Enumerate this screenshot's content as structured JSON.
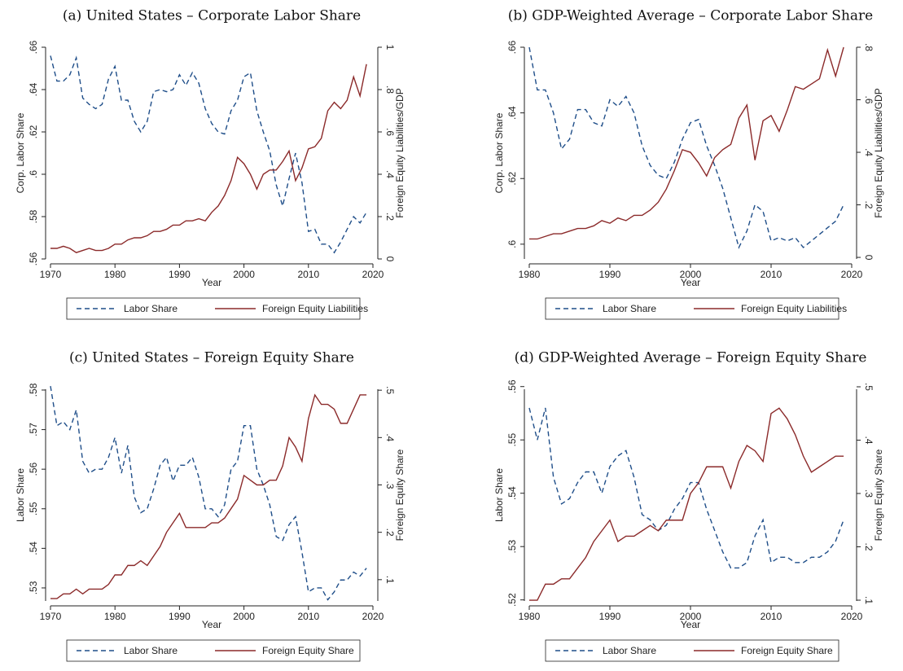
{
  "chart_data": [
    {
      "type": "line",
      "title": "(a) United States – Corporate Labor Share",
      "x_label": "Year",
      "y_label": "Corp. Labor Share",
      "y2_label": "Foreign Equity Liabilities/GDP",
      "x": [
        1970,
        1971,
        1972,
        1973,
        1974,
        1975,
        1976,
        1977,
        1978,
        1979,
        1980,
        1981,
        1982,
        1983,
        1984,
        1985,
        1986,
        1987,
        1988,
        1989,
        1990,
        1991,
        1992,
        1993,
        1994,
        1995,
        1996,
        1997,
        1998,
        1999,
        2000,
        2001,
        2002,
        2003,
        2004,
        2005,
        2006,
        2007,
        2008,
        2009,
        2010,
        2011,
        2012,
        2013,
        2014,
        2015,
        2016,
        2017,
        2018,
        2019
      ],
      "xlim": [
        1970,
        2020
      ],
      "xticks": [
        1970,
        1980,
        1990,
        2000,
        2010,
        2020
      ],
      "ylim": [
        0.56,
        0.66
      ],
      "yticks": [
        {
          "value": 0.56,
          "label": ".56"
        },
        {
          "value": 0.58,
          "label": ".58"
        },
        {
          "value": 0.6,
          "label": ".6"
        },
        {
          "value": 0.62,
          "label": ".62"
        },
        {
          "value": 0.64,
          "label": ".64"
        },
        {
          "value": 0.66,
          "label": ".66"
        }
      ],
      "y2lim": [
        0,
        1
      ],
      "y2ticks": [
        0,
        {
          "value": 0.2,
          "label": ".2"
        },
        {
          "value": 0.4,
          "label": ".4"
        },
        {
          "value": 0.6,
          "label": ".6"
        },
        {
          "value": 0.8,
          "label": ".8"
        },
        1
      ],
      "series": [
        {
          "name": "Labor Share",
          "color": "#1f4e89",
          "style": "dashed",
          "values": [
            0.656,
            0.644,
            0.644,
            0.647,
            0.655,
            0.636,
            0.633,
            0.631,
            0.633,
            0.645,
            0.651,
            0.635,
            0.635,
            0.625,
            0.62,
            0.625,
            0.639,
            0.64,
            0.639,
            0.64,
            0.647,
            0.642,
            0.648,
            0.643,
            0.631,
            0.624,
            0.62,
            0.619,
            0.63,
            0.635,
            0.646,
            0.648,
            0.63,
            0.62,
            0.611,
            0.595,
            0.585,
            0.598,
            0.61,
            0.596,
            0.573,
            0.574,
            0.567,
            0.567,
            0.563,
            0.568,
            0.574,
            0.58,
            0.577,
            0.582
          ]
        },
        {
          "name": "Foreign Equity Liabilities",
          "color": "#8b2a2a",
          "style": "solid",
          "axis": "y2",
          "values": [
            0.05,
            0.05,
            0.06,
            0.05,
            0.03,
            0.04,
            0.05,
            0.04,
            0.04,
            0.05,
            0.07,
            0.07,
            0.09,
            0.1,
            0.1,
            0.11,
            0.13,
            0.13,
            0.14,
            0.16,
            0.16,
            0.18,
            0.18,
            0.19,
            0.18,
            0.22,
            0.25,
            0.3,
            0.37,
            0.48,
            0.45,
            0.4,
            0.33,
            0.4,
            0.42,
            0.42,
            0.46,
            0.51,
            0.37,
            0.43,
            0.52,
            0.53,
            0.57,
            0.7,
            0.74,
            0.71,
            0.75,
            0.86,
            0.77,
            0.92
          ]
        }
      ]
    },
    {
      "type": "line",
      "title": "(b) GDP-Weighted Average – Corporate Labor Share",
      "x_label": "Year",
      "y_label": "Corp. Labor Share",
      "y2_label": "Foreign Equity Liabilities/GDP",
      "x": [
        1980,
        1981,
        1982,
        1983,
        1984,
        1985,
        1986,
        1987,
        1988,
        1989,
        1990,
        1991,
        1992,
        1993,
        1994,
        1995,
        1996,
        1997,
        1998,
        1999,
        2000,
        2001,
        2002,
        2003,
        2004,
        2005,
        2006,
        2007,
        2008,
        2009,
        2010,
        2011,
        2012,
        2013,
        2014,
        2015,
        2016,
        2017,
        2018,
        2019
      ],
      "xlim": [
        1980,
        2020
      ],
      "xticks": [
        1980,
        1990,
        2000,
        2010,
        2020
      ],
      "ylim": [
        0.5955,
        0.66
      ],
      "yticks": [
        {
          "value": 0.6,
          "label": ".6"
        },
        {
          "value": 0.62,
          "label": ".62"
        },
        {
          "value": 0.64,
          "label": ".64"
        },
        {
          "value": 0.66,
          "label": ".66"
        }
      ],
      "y2lim": [
        -0.006,
        0.8
      ],
      "y2ticks": [
        0,
        {
          "value": 0.2,
          "label": ".2"
        },
        {
          "value": 0.4,
          "label": ".4"
        },
        {
          "value": 0.6,
          "label": ".6"
        },
        {
          "value": 0.8,
          "label": ".8"
        }
      ],
      "series": [
        {
          "name": "Labor Share",
          "color": "#1f4e89",
          "style": "dashed",
          "values": [
            0.66,
            0.647,
            0.647,
            0.64,
            0.629,
            0.632,
            0.641,
            0.641,
            0.637,
            0.636,
            0.644,
            0.642,
            0.645,
            0.64,
            0.63,
            0.624,
            0.621,
            0.62,
            0.625,
            0.632,
            0.637,
            0.638,
            0.63,
            0.624,
            0.617,
            0.608,
            0.599,
            0.604,
            0.612,
            0.61,
            0.601,
            0.602,
            0.601,
            0.602,
            0.599,
            0.601,
            0.603,
            0.605,
            0.607,
            0.612
          ]
        },
        {
          "name": "Foreign Equity Liabilities",
          "color": "#8b2a2a",
          "style": "solid",
          "axis": "y2",
          "values": [
            0.07,
            0.07,
            0.08,
            0.09,
            0.09,
            0.1,
            0.11,
            0.11,
            0.12,
            0.14,
            0.13,
            0.15,
            0.14,
            0.16,
            0.16,
            0.18,
            0.21,
            0.26,
            0.33,
            0.41,
            0.4,
            0.36,
            0.31,
            0.38,
            0.41,
            0.43,
            0.53,
            0.58,
            0.37,
            0.52,
            0.54,
            0.48,
            0.56,
            0.65,
            0.64,
            0.66,
            0.68,
            0.79,
            0.69,
            0.8
          ]
        }
      ]
    },
    {
      "type": "line",
      "title": "(c) United States – Foreign Equity Share",
      "x_label": "Year",
      "y_label": "Labor Share",
      "y2_label": "Foreign Equity Share",
      "x": [
        1970,
        1971,
        1972,
        1973,
        1974,
        1975,
        1976,
        1977,
        1978,
        1979,
        1980,
        1981,
        1982,
        1983,
        1984,
        1985,
        1986,
        1987,
        1988,
        1989,
        1990,
        1991,
        1992,
        1993,
        1994,
        1995,
        1996,
        1997,
        1998,
        1999,
        2000,
        2001,
        2002,
        2003,
        2004,
        2005,
        2006,
        2007,
        2008,
        2009,
        2010,
        2011,
        2012,
        2013,
        2014,
        2015,
        2016,
        2017,
        2018,
        2019
      ],
      "xlim": [
        1970,
        2020
      ],
      "xticks": [
        1970,
        1980,
        1990,
        2000,
        2010,
        2020
      ],
      "ylim": [
        0.5267,
        0.5802
      ],
      "yticks": [
        {
          "value": 0.53,
          "label": ".53"
        },
        {
          "value": 0.54,
          "label": ".54"
        },
        {
          "value": 0.55,
          "label": ".55"
        },
        {
          "value": 0.56,
          "label": ".56"
        },
        {
          "value": 0.57,
          "label": ".57"
        },
        {
          "value": 0.58,
          "label": ".58"
        }
      ],
      "y2lim": [
        0.055,
        0.502
      ],
      "y2ticks": [
        {
          "value": 0.1,
          "label": ".1"
        },
        {
          "value": 0.2,
          "label": ".2"
        },
        {
          "value": 0.3,
          "label": ".3"
        },
        {
          "value": 0.4,
          "label": ".4"
        },
        {
          "value": 0.5,
          "label": ".5"
        }
      ],
      "series": [
        {
          "name": "Labor Share",
          "color": "#1f4e89",
          "style": "dashed",
          "values": [
            0.581,
            0.571,
            0.572,
            0.57,
            0.575,
            0.562,
            0.559,
            0.56,
            0.56,
            0.563,
            0.568,
            0.559,
            0.566,
            0.553,
            0.549,
            0.55,
            0.555,
            0.561,
            0.563,
            0.557,
            0.561,
            0.561,
            0.563,
            0.558,
            0.55,
            0.55,
            0.548,
            0.551,
            0.56,
            0.562,
            0.571,
            0.571,
            0.56,
            0.556,
            0.551,
            0.543,
            0.542,
            0.546,
            0.548,
            0.539,
            0.529,
            0.53,
            0.53,
            0.527,
            0.529,
            0.532,
            0.532,
            0.534,
            0.533,
            0.535
          ]
        },
        {
          "name": "Foreign Equity Share",
          "color": "#8b2a2a",
          "style": "solid",
          "axis": "y2",
          "values": [
            0.06,
            0.06,
            0.07,
            0.07,
            0.08,
            0.07,
            0.08,
            0.08,
            0.08,
            0.09,
            0.11,
            0.11,
            0.13,
            0.13,
            0.14,
            0.13,
            0.15,
            0.17,
            0.2,
            0.22,
            0.24,
            0.21,
            0.21,
            0.21,
            0.21,
            0.22,
            0.22,
            0.23,
            0.25,
            0.27,
            0.32,
            0.31,
            0.3,
            0.3,
            0.31,
            0.31,
            0.34,
            0.4,
            0.38,
            0.35,
            0.44,
            0.49,
            0.47,
            0.47,
            0.46,
            0.43,
            0.43,
            0.46,
            0.49,
            0.49
          ]
        }
      ]
    },
    {
      "type": "line",
      "title": "(d) GDP-Weighted Average – Foreign Equity Share",
      "x_label": "Year",
      "y_label": "Labor Share",
      "y2_label": "Foreign Equity Share",
      "x": [
        1980,
        1981,
        1982,
        1983,
        1984,
        1985,
        1986,
        1987,
        1988,
        1989,
        1990,
        1991,
        1992,
        1993,
        1994,
        1995,
        1996,
        1997,
        1998,
        1999,
        2000,
        2001,
        2002,
        2003,
        2004,
        2005,
        2006,
        2007,
        2008,
        2009,
        2010,
        2011,
        2012,
        2013,
        2014,
        2015,
        2016,
        2017,
        2018,
        2019
      ],
      "xlim": [
        1980,
        2020
      ],
      "xticks": [
        1980,
        1990,
        2000,
        2010,
        2020
      ],
      "ylim": [
        0.5198,
        0.5595
      ],
      "yticks": [
        {
          "value": 0.52,
          "label": ".52"
        },
        {
          "value": 0.53,
          "label": ".53"
        },
        {
          "value": 0.54,
          "label": ".54"
        },
        {
          "value": 0.55,
          "label": ".55"
        },
        {
          "value": 0.56,
          "label": ".56"
        }
      ],
      "y2lim": [
        0.0985,
        0.4954
      ],
      "y2ticks": [
        {
          "value": 0.1,
          "label": ".1"
        },
        {
          "value": 0.2,
          "label": ".2"
        },
        {
          "value": 0.3,
          "label": ".3"
        },
        {
          "value": 0.4,
          "label": ".4"
        },
        {
          "value": 0.5,
          "label": ".5"
        }
      ],
      "series": [
        {
          "name": "Labor Share",
          "color": "#1f4e89",
          "style": "dashed",
          "values": [
            0.556,
            0.55,
            0.556,
            0.543,
            0.538,
            0.539,
            0.542,
            0.544,
            0.544,
            0.54,
            0.545,
            0.547,
            0.548,
            0.543,
            0.536,
            0.535,
            0.533,
            0.534,
            0.537,
            0.539,
            0.542,
            0.542,
            0.537,
            0.533,
            0.529,
            0.526,
            0.526,
            0.527,
            0.532,
            0.535,
            0.527,
            0.528,
            0.528,
            0.527,
            0.527,
            0.528,
            0.528,
            0.529,
            0.531,
            0.535
          ]
        },
        {
          "name": "Foreign Equity Share",
          "color": "#8b2a2a",
          "style": "solid",
          "axis": "y2",
          "values": [
            0.1,
            0.1,
            0.13,
            0.13,
            0.14,
            0.14,
            0.16,
            0.18,
            0.21,
            0.23,
            0.25,
            0.21,
            0.22,
            0.22,
            0.23,
            0.24,
            0.23,
            0.25,
            0.25,
            0.25,
            0.3,
            0.32,
            0.35,
            0.35,
            0.35,
            0.31,
            0.36,
            0.39,
            0.38,
            0.36,
            0.45,
            0.46,
            0.44,
            0.41,
            0.37,
            0.34,
            0.35,
            0.36,
            0.37,
            0.37
          ]
        }
      ]
    }
  ]
}
